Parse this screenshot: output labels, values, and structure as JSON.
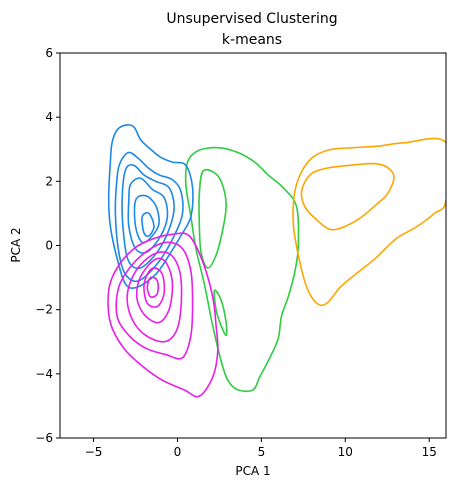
{
  "chart_data": {
    "type": "contour",
    "title": "Unsupervised Clustering",
    "subtitle": "k-means",
    "xlabel": "PCA 1",
    "ylabel": "PCA 2",
    "xlim": [
      -7,
      16
    ],
    "ylim": [
      -6,
      6
    ],
    "xticks": [
      -5,
      0,
      5,
      10,
      15
    ],
    "yticks": [
      -6,
      -4,
      -2,
      0,
      2,
      4,
      6
    ],
    "grid": false,
    "legend": "none",
    "series": [
      {
        "color": "#1e88e5",
        "contours": [
          [
            [
              -3.6,
              3.6
            ],
            [
              -3.1,
              3.75
            ],
            [
              -2.6,
              3.7
            ],
            [
              -2.2,
              3.3
            ],
            [
              -1.6,
              3.0
            ],
            [
              -1.0,
              2.75
            ],
            [
              -0.3,
              2.6
            ],
            [
              0.5,
              2.5
            ],
            [
              0.9,
              1.8
            ],
            [
              0.8,
              0.9
            ],
            [
              0.2,
              0.3
            ],
            [
              -0.5,
              -0.3
            ],
            [
              -1.3,
              -0.9
            ],
            [
              -2.4,
              -1.3
            ],
            [
              -3.1,
              -1.2
            ],
            [
              -3.6,
              -0.4
            ],
            [
              -4.0,
              0.6
            ],
            [
              -4.1,
              1.5
            ],
            [
              -4.0,
              2.6
            ],
            [
              -3.9,
              3.2
            ],
            [
              -3.6,
              3.6
            ]
          ],
          [
            [
              -3.4,
              2.6
            ],
            [
              -2.9,
              2.9
            ],
            [
              -2.3,
              2.7
            ],
            [
              -1.7,
              2.4
            ],
            [
              -1.1,
              2.2
            ],
            [
              -0.3,
              2.05
            ],
            [
              0.2,
              1.7
            ],
            [
              0.3,
              1.0
            ],
            [
              -0.2,
              0.3
            ],
            [
              -1.1,
              -0.5
            ],
            [
              -2.3,
              -1.1
            ],
            [
              -3.1,
              -0.9
            ],
            [
              -3.5,
              -0.2
            ],
            [
              -3.7,
              1.0
            ],
            [
              -3.6,
              2.1
            ],
            [
              -3.4,
              2.6
            ]
          ],
          [
            [
              -3.1,
              2.35
            ],
            [
              -2.6,
              2.5
            ],
            [
              -2.0,
              2.2
            ],
            [
              -1.3,
              2.0
            ],
            [
              -0.5,
              1.8
            ],
            [
              -0.2,
              1.2
            ],
            [
              -0.5,
              0.5
            ],
            [
              -1.2,
              -0.2
            ],
            [
              -2.2,
              -0.7
            ],
            [
              -2.9,
              -0.5
            ],
            [
              -3.2,
              0.3
            ],
            [
              -3.3,
              1.4
            ],
            [
              -3.1,
              2.35
            ]
          ],
          [
            [
              -2.8,
              1.9
            ],
            [
              -2.2,
              2.1
            ],
            [
              -1.5,
              1.75
            ],
            [
              -0.8,
              1.5
            ],
            [
              -0.6,
              0.9
            ],
            [
              -1.0,
              0.3
            ],
            [
              -1.8,
              -0.2
            ],
            [
              -2.5,
              -0.1
            ],
            [
              -2.9,
              0.6
            ],
            [
              -2.9,
              1.4
            ],
            [
              -2.8,
              1.9
            ]
          ],
          [
            [
              -2.5,
              1.4
            ],
            [
              -1.9,
              1.55
            ],
            [
              -1.3,
              1.25
            ],
            [
              -1.1,
              0.7
            ],
            [
              -1.5,
              0.3
            ],
            [
              -2.1,
              0.1
            ],
            [
              -2.5,
              0.6
            ],
            [
              -2.5,
              1.4
            ]
          ],
          [
            [
              -2.1,
              0.9
            ],
            [
              -1.7,
              1.0
            ],
            [
              -1.4,
              0.6
            ],
            [
              -1.7,
              0.3
            ],
            [
              -2.0,
              0.4
            ],
            [
              -2.1,
              0.9
            ]
          ]
        ]
      },
      {
        "color": "#e91ee9",
        "contours": [
          [
            [
              -0.3,
              0.35
            ],
            [
              0.7,
              0.3
            ],
            [
              1.5,
              -0.5
            ],
            [
              2.1,
              -1.6
            ],
            [
              2.3,
              -2.5
            ],
            [
              2.4,
              -3.3
            ],
            [
              2.1,
              -4.1
            ],
            [
              1.3,
              -4.7
            ],
            [
              0.4,
              -4.5
            ],
            [
              -0.9,
              -4.2
            ],
            [
              -2.0,
              -3.8
            ],
            [
              -3.2,
              -3.2
            ],
            [
              -4.0,
              -2.4
            ],
            [
              -4.1,
              -1.4
            ],
            [
              -3.6,
              -0.7
            ],
            [
              -2.6,
              -0.1
            ],
            [
              -1.5,
              0.2
            ],
            [
              -0.3,
              0.35
            ]
          ],
          [
            [
              -0.6,
              0.1
            ],
            [
              0.3,
              -0.1
            ],
            [
              0.8,
              -0.8
            ],
            [
              0.9,
              -1.8
            ],
            [
              0.8,
              -2.8
            ],
            [
              0.3,
              -3.5
            ],
            [
              -0.7,
              -3.4
            ],
            [
              -1.9,
              -3.2
            ],
            [
              -2.9,
              -2.8
            ],
            [
              -3.6,
              -2.2
            ],
            [
              -3.5,
              -1.3
            ],
            [
              -2.7,
              -0.6
            ],
            [
              -1.6,
              -0.1
            ],
            [
              -0.6,
              0.1
            ]
          ],
          [
            [
              -0.9,
              -0.2
            ],
            [
              -0.2,
              -0.4
            ],
            [
              0.2,
              -1.0
            ],
            [
              0.2,
              -2.0
            ],
            [
              -0.1,
              -2.7
            ],
            [
              -0.8,
              -3.0
            ],
            [
              -1.9,
              -2.8
            ],
            [
              -2.7,
              -2.3
            ],
            [
              -3.0,
              -1.6
            ],
            [
              -2.6,
              -0.9
            ],
            [
              -1.8,
              -0.4
            ],
            [
              -0.9,
              -0.2
            ]
          ],
          [
            [
              -1.1,
              -0.4
            ],
            [
              -0.6,
              -0.6
            ],
            [
              -0.3,
              -1.2
            ],
            [
              -0.5,
              -2.0
            ],
            [
              -1.1,
              -2.4
            ],
            [
              -1.9,
              -2.2
            ],
            [
              -2.4,
              -1.7
            ],
            [
              -2.3,
              -1.1
            ],
            [
              -1.7,
              -0.6
            ],
            [
              -1.1,
              -0.4
            ]
          ],
          [
            [
              -1.4,
              -0.7
            ],
            [
              -0.9,
              -0.9
            ],
            [
              -0.8,
              -1.5
            ],
            [
              -1.2,
              -1.9
            ],
            [
              -1.8,
              -1.8
            ],
            [
              -2.0,
              -1.3
            ],
            [
              -1.8,
              -0.9
            ],
            [
              -1.4,
              -0.7
            ]
          ],
          [
            [
              -1.6,
              -1.0
            ],
            [
              -1.2,
              -1.1
            ],
            [
              -1.2,
              -1.5
            ],
            [
              -1.6,
              -1.6
            ],
            [
              -1.8,
              -1.3
            ],
            [
              -1.6,
              -1.0
            ]
          ]
        ]
      },
      {
        "color": "#2ecc40",
        "contours": [
          [
            [
              0.6,
              2.6
            ],
            [
              1.2,
              2.95
            ],
            [
              2.4,
              3.05
            ],
            [
              3.6,
              2.9
            ],
            [
              4.6,
              2.6
            ],
            [
              5.4,
              2.2
            ],
            [
              6.3,
              1.8
            ],
            [
              7.1,
              1.2
            ],
            [
              7.2,
              0.0
            ],
            [
              7.0,
              -0.8
            ],
            [
              6.6,
              -1.6
            ],
            [
              6.2,
              -2.2
            ],
            [
              6.0,
              -2.9
            ],
            [
              5.5,
              -3.5
            ],
            [
              4.9,
              -4.1
            ],
            [
              4.5,
              -4.5
            ],
            [
              3.6,
              -4.5
            ],
            [
              3.0,
              -4.2
            ],
            [
              2.6,
              -3.6
            ],
            [
              2.1,
              -2.5
            ],
            [
              1.6,
              -1.2
            ],
            [
              1.1,
              -0.1
            ],
            [
              0.8,
              0.9
            ],
            [
              0.5,
              1.9
            ],
            [
              0.6,
              2.6
            ]
          ],
          [
            [
              1.5,
              2.3
            ],
            [
              2.1,
              2.3
            ],
            [
              2.6,
              2.0
            ],
            [
              2.9,
              1.3
            ],
            [
              2.7,
              0.5
            ],
            [
              2.3,
              -0.3
            ],
            [
              1.8,
              -0.7
            ],
            [
              1.4,
              -0.2
            ],
            [
              1.3,
              0.7
            ],
            [
              1.3,
              1.6
            ],
            [
              1.5,
              2.3
            ]
          ],
          [
            [
              2.2,
              -1.4
            ],
            [
              2.6,
              -1.7
            ],
            [
              2.9,
              -2.4
            ],
            [
              2.9,
              -2.8
            ],
            [
              2.6,
              -2.5
            ],
            [
              2.3,
              -2.0
            ],
            [
              2.2,
              -1.4
            ]
          ]
        ]
      },
      {
        "color": "#ffa500",
        "contours": [
          [
            [
              7.0,
              1.7
            ],
            [
              7.5,
              2.4
            ],
            [
              8.2,
              2.8
            ],
            [
              9.2,
              3.0
            ],
            [
              10.5,
              3.05
            ],
            [
              12.0,
              3.1
            ],
            [
              13.5,
              3.2
            ],
            [
              16,
              3.2
            ],
            [
              16,
              1.4
            ],
            [
              15.3,
              1.0
            ],
            [
              14.3,
              0.6
            ],
            [
              13.0,
              0.2
            ],
            [
              11.8,
              -0.4
            ],
            [
              10.6,
              -0.9
            ],
            [
              9.7,
              -1.3
            ],
            [
              8.9,
              -1.8
            ],
            [
              8.3,
              -1.8
            ],
            [
              7.7,
              -1.3
            ],
            [
              7.2,
              -0.3
            ],
            [
              6.9,
              0.7
            ],
            [
              7.0,
              1.7
            ]
          ],
          [
            [
              7.4,
              1.7
            ],
            [
              7.9,
              2.2
            ],
            [
              8.8,
              2.4
            ],
            [
              10.3,
              2.5
            ],
            [
              11.8,
              2.55
            ],
            [
              12.6,
              2.4
            ],
            [
              12.9,
              2.1
            ],
            [
              12.5,
              1.6
            ],
            [
              11.9,
              1.3
            ],
            [
              11.0,
              0.9
            ],
            [
              10.0,
              0.6
            ],
            [
              9.1,
              0.5
            ],
            [
              8.3,
              0.8
            ],
            [
              7.6,
              1.2
            ],
            [
              7.4,
              1.7
            ]
          ]
        ]
      }
    ]
  }
}
